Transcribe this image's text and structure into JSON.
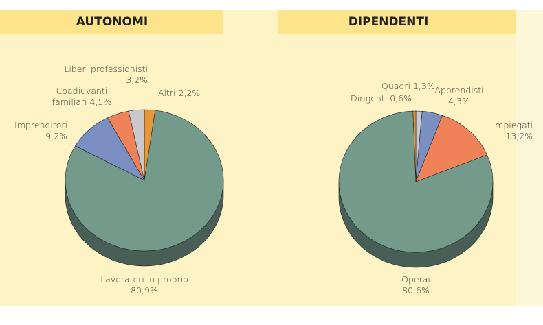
{
  "chart_data": [
    {
      "type": "pie",
      "title": "AUTONOMI",
      "categories": [
        "Altri",
        "Lavoratori in proprio",
        "Imprenditori",
        "Coadiuvanti familiari",
        "Liberi professionisti"
      ],
      "values": [
        2.2,
        80.9,
        9.2,
        4.5,
        3.2
      ],
      "value_labels": [
        "2,2%",
        "80,9%",
        "9,2%",
        "4,5%",
        "3,2%"
      ],
      "colors": [
        "#e8963a",
        "#739a8a",
        "#7b8fc2",
        "#f0825a",
        "#c9c9cd"
      ]
    },
    {
      "type": "pie",
      "title": "DIPENDENTI",
      "categories": [
        "Quadri",
        "Apprendisti",
        "Impiegati",
        "Operai",
        "Dirigenti"
      ],
      "values": [
        1.3,
        4.3,
        13.2,
        80.6,
        0.6
      ],
      "value_labels": [
        "1,3%",
        "4,3%",
        "13,2%",
        "80,6%",
        "0,6%"
      ],
      "colors": [
        "#c9c9cd",
        "#7b8fc2",
        "#f0825a",
        "#739a8a",
        "#e8963a"
      ]
    }
  ]
}
